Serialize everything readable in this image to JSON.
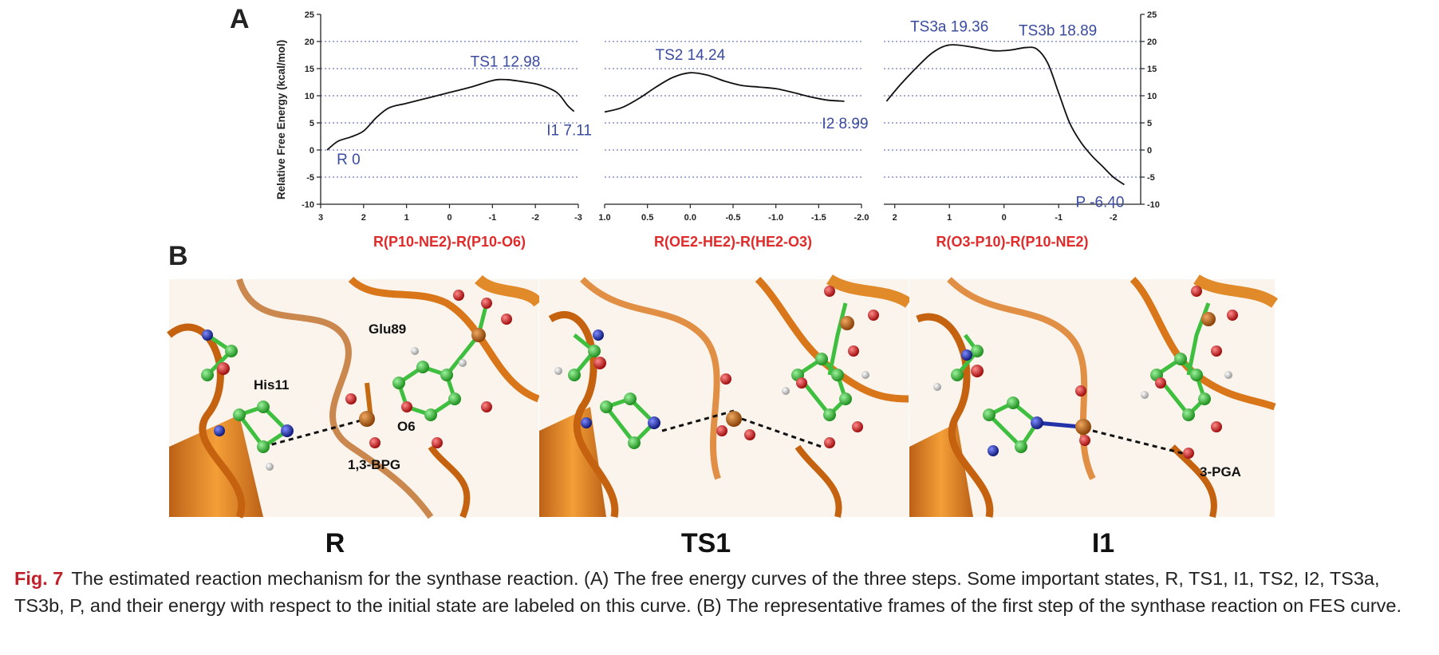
{
  "panel_a_letter": "A",
  "panel_b_letter": "B",
  "chart_data": [
    {
      "type": "line",
      "xlabel": "R(P10-NE2)-R(P10-O6)",
      "ylabel": "Relative Free Energy (kcal/mol)",
      "xlim": [
        3,
        -3
      ],
      "ylim": [
        -10,
        25
      ],
      "x_ticks": [
        "3",
        "2",
        "1",
        "0",
        "-1",
        "-2",
        "-3"
      ],
      "y_ticks": [
        "-10",
        "-5",
        "0",
        "5",
        "10",
        "15",
        "20",
        "25"
      ],
      "grid": "horizontal dotted",
      "series": [
        {
          "x": [
            2.85,
            2.6,
            2.3,
            2.0,
            1.7,
            1.4,
            1.0,
            0.5,
            0.0,
            -0.5,
            -1.0,
            -1.3,
            -1.7,
            -2.1,
            -2.5,
            -2.75,
            -2.9
          ],
          "y": [
            0,
            1.6,
            2.4,
            3.5,
            6.0,
            7.8,
            8.6,
            9.6,
            10.6,
            11.6,
            12.8,
            12.98,
            12.6,
            12.0,
            10.6,
            8.2,
            7.11
          ]
        }
      ],
      "annotations": [
        {
          "text": "R 0",
          "x": 2.85,
          "y": 0
        },
        {
          "text": "TS1 12.98",
          "x": -1.3,
          "y": 12.98
        },
        {
          "text": "I1 7.11",
          "x": -2.9,
          "y": 7.11
        }
      ]
    },
    {
      "type": "line",
      "xlabel": "R(OE2-HE2)-R(HE2-O3)",
      "xlim": [
        1.0,
        -2.0
      ],
      "ylim": [
        -10,
        25
      ],
      "x_ticks": [
        "1.0",
        "0.5",
        "0.0",
        "-0.5",
        "-1.0",
        "-1.5",
        "-2.0"
      ],
      "grid": "horizontal dotted",
      "series": [
        {
          "x": [
            1.0,
            0.8,
            0.6,
            0.4,
            0.2,
            0.0,
            -0.2,
            -0.4,
            -0.6,
            -0.8,
            -1.0,
            -1.2,
            -1.4,
            -1.6,
            -1.8
          ],
          "y": [
            7.0,
            7.8,
            9.5,
            11.6,
            13.4,
            14.24,
            13.8,
            12.7,
            11.9,
            11.6,
            11.3,
            10.6,
            9.8,
            9.2,
            8.99
          ]
        }
      ],
      "annotations": [
        {
          "text": "TS2 14.24",
          "x": 0.0,
          "y": 14.24
        },
        {
          "text": "I2 8.99",
          "x": -1.8,
          "y": 8.99
        }
      ]
    },
    {
      "type": "line",
      "xlabel": "R(O3-P10)-R(P10-NE2)",
      "xlim": [
        2.2,
        -2.5
      ],
      "ylim": [
        -10,
        25
      ],
      "x_ticks": [
        "2",
        "1",
        "0",
        "-1",
        "-2"
      ],
      "y_ticks": [
        "-10",
        "-5",
        "0",
        "5",
        "10",
        "15",
        "20",
        "25"
      ],
      "grid": "horizontal dotted",
      "series": [
        {
          "x": [
            2.15,
            1.9,
            1.6,
            1.3,
            1.0,
            0.6,
            0.2,
            -0.1,
            -0.4,
            -0.6,
            -0.8,
            -1.0,
            -1.2,
            -1.4,
            -1.6,
            -1.8,
            -2.0,
            -2.2
          ],
          "y": [
            8.99,
            12.0,
            15.2,
            18.0,
            19.36,
            19.0,
            18.3,
            18.4,
            18.89,
            18.6,
            16.0,
            10.5,
            5.0,
            1.5,
            -1.0,
            -3.0,
            -5.0,
            -6.4
          ]
        }
      ],
      "annotations": [
        {
          "text": "TS3a 19.36",
          "x": 1.0,
          "y": 19.36
        },
        {
          "text": "TS3b 18.89",
          "x": -0.4,
          "y": 18.89
        },
        {
          "text": "P -6.40",
          "x": -2.2,
          "y": -6.4
        }
      ]
    }
  ],
  "frames": [
    {
      "title": "R",
      "labels": [
        "His11",
        "Glu89",
        "O6",
        "1,3-BPG"
      ]
    },
    {
      "title": "TS1",
      "labels": []
    },
    {
      "title": "I1",
      "labels": [
        "3-PGA"
      ]
    }
  ],
  "colors": {
    "protein": "#d9761a",
    "protein_dark": "#a85410",
    "carbon": "#3fbf3f",
    "oxygen": "#d21f1f",
    "nitrogen": "#2233aa",
    "phosphorus": "#c46a10",
    "hydrogen": "#e8e8e8",
    "annotation": "#3a4ba0",
    "axis_title": "#e02b2b"
  },
  "caption": {
    "fig_no": "Fig. 7",
    "text": "The estimated reaction mechanism for the synthase reaction. (A) The free energy curves of the three steps. Some important states, R, TS1, I1, TS2, I2, TS3a, TS3b, P, and their energy with respect to the initial state are labeled on this curve. (B) The representative frames of the first step of the synthase reaction on FES curve."
  }
}
